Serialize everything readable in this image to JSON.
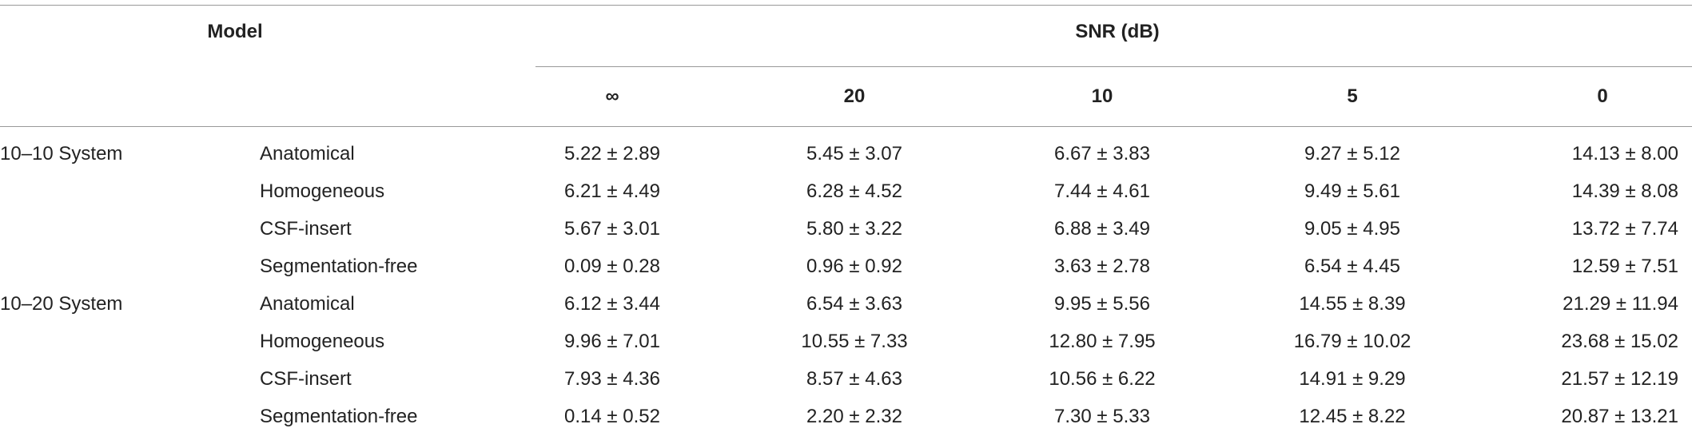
{
  "header": {
    "model": "Model",
    "snr": "SNR (dB)",
    "columns": [
      "∞",
      "20",
      "10",
      "5",
      "0"
    ]
  },
  "rows": [
    {
      "group": "10–10 System",
      "model": "Anatomical",
      "values": [
        "5.22 ± 2.89",
        "5.45 ± 3.07",
        "6.67 ± 3.83",
        "9.27 ± 5.12",
        "14.13 ± 8.00"
      ]
    },
    {
      "model": "Homogeneous",
      "values": [
        "6.21 ± 4.49",
        "6.28 ± 4.52",
        "7.44 ± 4.61",
        "9.49 ± 5.61",
        "14.39 ± 8.08"
      ]
    },
    {
      "model": "CSF-insert",
      "values": [
        "5.67 ± 3.01",
        "5.80 ± 3.22",
        "6.88 ± 3.49",
        "9.05 ± 4.95",
        "13.72 ± 7.74"
      ]
    },
    {
      "model": "Segmentation-free",
      "values": [
        "0.09 ± 0.28",
        "0.96 ± 0.92",
        "3.63 ± 2.78",
        "6.54 ± 4.45",
        "12.59 ± 7.51"
      ]
    },
    {
      "group": "10–20 System",
      "model": "Anatomical",
      "values": [
        "6.12 ± 3.44",
        "6.54 ± 3.63",
        "9.95 ± 5.56",
        "14.55 ± 8.39",
        "21.29 ± 11.94"
      ]
    },
    {
      "model": "Homogeneous",
      "values": [
        "9.96 ± 7.01",
        "10.55 ± 7.33",
        "12.80 ± 7.95",
        "16.79 ± 10.02",
        "23.68 ± 15.02"
      ]
    },
    {
      "model": "CSF-insert",
      "values": [
        "7.93 ± 4.36",
        "8.57 ± 4.63",
        "10.56 ± 6.22",
        "14.91 ± 9.29",
        "21.57 ± 12.19"
      ]
    },
    {
      "model": "Segmentation-free",
      "values": [
        "0.14 ± 0.52",
        "2.20 ± 2.32",
        "7.30 ± 5.33",
        "12.45 ± 8.22",
        "20.87 ± 13.21"
      ]
    }
  ]
}
